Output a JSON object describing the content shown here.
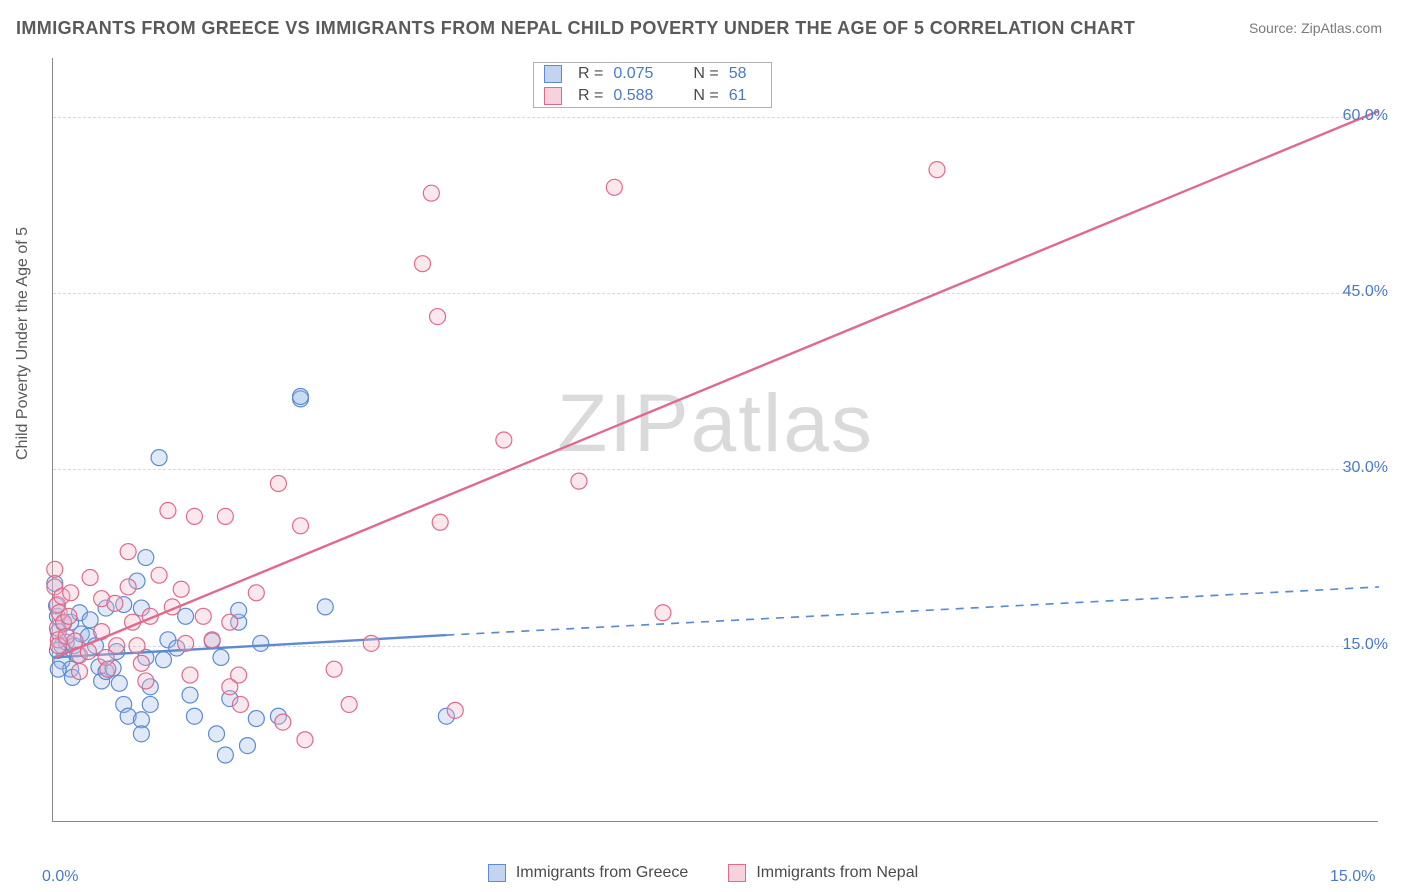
{
  "title": "IMMIGRANTS FROM GREECE VS IMMIGRANTS FROM NEPAL CHILD POVERTY UNDER THE AGE OF 5 CORRELATION CHART",
  "source": "Source: ZipAtlas.com",
  "watermark": "ZIPatlas",
  "y_axis_label": "Child Poverty Under the Age of 5",
  "chart": {
    "type": "scatter-with-regression",
    "background_color": "#ffffff",
    "grid_color": "#d8d8d8",
    "axis_color": "#888888",
    "tick_label_color": "#4a7ac7",
    "text_color": "#5a5a5a",
    "xlim": [
      0,
      15
    ],
    "ylim": [
      0,
      65
    ],
    "x_ticks": [
      {
        "value": 0.0,
        "label": "0.0%"
      },
      {
        "value": 15.0,
        "label": "15.0%"
      }
    ],
    "y_ticks": [
      {
        "value": 15.0,
        "label": "15.0%"
      },
      {
        "value": 30.0,
        "label": "30.0%"
      },
      {
        "value": 45.0,
        "label": "45.0%"
      },
      {
        "value": 60.0,
        "label": "60.0%"
      }
    ],
    "marker_radius": 8,
    "marker_fill_opacity": 0.32,
    "marker_stroke_width": 1.2,
    "line_width": 2.4,
    "series": [
      {
        "name": "Immigrants from Greece",
        "color_fill": "#9dbce8",
        "color_stroke": "#5e8bd0",
        "R": 0.075,
        "N": 58,
        "regression": {
          "x1": 0.0,
          "y1": 14.0,
          "x2": 4.45,
          "y2": 15.9,
          "dashed_extend_to_x": 15.0,
          "dashed_extend_to_y": 20.0
        },
        "points": [
          [
            0.02,
            20.3
          ],
          [
            0.05,
            17.5
          ],
          [
            0.06,
            16.2
          ],
          [
            0.04,
            18.4
          ],
          [
            0.1,
            15.0
          ],
          [
            0.1,
            13.7
          ],
          [
            0.15,
            15.3
          ],
          [
            0.12,
            16.9
          ],
          [
            0.2,
            17.0
          ],
          [
            0.24,
            15.0
          ],
          [
            0.28,
            14.2
          ],
          [
            0.2,
            13.0
          ],
          [
            0.05,
            14.6
          ],
          [
            0.06,
            13.0
          ],
          [
            0.22,
            12.3
          ],
          [
            0.3,
            17.8
          ],
          [
            0.32,
            16.0
          ],
          [
            0.4,
            15.8
          ],
          [
            0.42,
            17.2
          ],
          [
            0.48,
            15.0
          ],
          [
            0.6,
            18.2
          ],
          [
            0.52,
            13.2
          ],
          [
            0.55,
            12.0
          ],
          [
            0.6,
            12.8
          ],
          [
            0.68,
            13.1
          ],
          [
            0.72,
            14.5
          ],
          [
            0.8,
            18.5
          ],
          [
            0.75,
            11.8
          ],
          [
            0.8,
            10.0
          ],
          [
            0.85,
            9.0
          ],
          [
            0.95,
            20.5
          ],
          [
            1.0,
            18.2
          ],
          [
            1.05,
            14.0
          ],
          [
            1.1,
            11.5
          ],
          [
            1.1,
            10.0
          ],
          [
            1.0,
            8.7
          ],
          [
            1.0,
            7.5
          ],
          [
            1.25,
            13.8
          ],
          [
            1.3,
            15.5
          ],
          [
            1.4,
            14.8
          ],
          [
            1.5,
            17.5
          ],
          [
            1.55,
            10.8
          ],
          [
            1.6,
            9.0
          ],
          [
            1.85,
            7.5
          ],
          [
            1.8,
            15.4
          ],
          [
            1.9,
            14.0
          ],
          [
            1.95,
            5.7
          ],
          [
            2.0,
            10.5
          ],
          [
            2.1,
            17.0
          ],
          [
            2.1,
            18.0
          ],
          [
            2.2,
            6.5
          ],
          [
            2.3,
            8.8
          ],
          [
            2.35,
            15.2
          ],
          [
            2.55,
            9.0
          ],
          [
            2.8,
            36.0
          ],
          [
            2.8,
            36.2
          ],
          [
            3.08,
            18.3
          ],
          [
            4.45,
            9.0
          ],
          [
            1.2,
            31.0
          ],
          [
            1.05,
            22.5
          ]
        ]
      },
      {
        "name": "Immigrants from Nepal",
        "color_fill": "#f3b9c8",
        "color_stroke": "#e06a8c",
        "R": 0.588,
        "N": 61,
        "regression": {
          "x1": 0.03,
          "y1": 14.0,
          "x2": 15.0,
          "y2": 60.5,
          "dashed_extend_to_x": null,
          "dashed_extend_to_y": null
        },
        "points": [
          [
            0.02,
            21.5
          ],
          [
            0.02,
            20.0
          ],
          [
            0.05,
            18.5
          ],
          [
            0.05,
            16.5
          ],
          [
            0.06,
            15.5
          ],
          [
            0.06,
            15.0
          ],
          [
            0.07,
            17.8
          ],
          [
            0.1,
            19.2
          ],
          [
            0.12,
            17.0
          ],
          [
            0.15,
            15.8
          ],
          [
            0.18,
            17.5
          ],
          [
            0.2,
            19.5
          ],
          [
            0.25,
            15.4
          ],
          [
            0.3,
            14.2
          ],
          [
            0.3,
            12.8
          ],
          [
            0.4,
            14.5
          ],
          [
            0.42,
            20.8
          ],
          [
            0.55,
            19.0
          ],
          [
            0.55,
            16.2
          ],
          [
            0.6,
            14.0
          ],
          [
            0.62,
            13.0
          ],
          [
            0.7,
            18.6
          ],
          [
            0.72,
            15.0
          ],
          [
            0.85,
            23.0
          ],
          [
            0.85,
            20.0
          ],
          [
            0.9,
            17.0
          ],
          [
            0.95,
            15.0
          ],
          [
            1.0,
            13.5
          ],
          [
            1.05,
            12.0
          ],
          [
            1.1,
            17.5
          ],
          [
            1.2,
            21.0
          ],
          [
            1.3,
            26.5
          ],
          [
            1.35,
            18.3
          ],
          [
            1.45,
            19.8
          ],
          [
            1.5,
            15.2
          ],
          [
            1.55,
            12.5
          ],
          [
            1.6,
            26.0
          ],
          [
            1.7,
            17.5
          ],
          [
            1.8,
            15.5
          ],
          [
            1.95,
            26.0
          ],
          [
            2.0,
            17.0
          ],
          [
            2.0,
            11.5
          ],
          [
            2.1,
            12.5
          ],
          [
            2.12,
            10.0
          ],
          [
            2.3,
            19.5
          ],
          [
            2.55,
            28.8
          ],
          [
            2.6,
            8.5
          ],
          [
            2.8,
            25.2
          ],
          [
            2.85,
            7.0
          ],
          [
            3.18,
            13.0
          ],
          [
            3.35,
            10.0
          ],
          [
            3.6,
            15.2
          ],
          [
            4.18,
            47.5
          ],
          [
            4.28,
            53.5
          ],
          [
            4.35,
            43.0
          ],
          [
            4.38,
            25.5
          ],
          [
            4.55,
            9.5
          ],
          [
            5.1,
            32.5
          ],
          [
            5.95,
            29.0
          ],
          [
            6.35,
            54.0
          ],
          [
            6.9,
            17.8
          ],
          [
            10.0,
            55.5
          ]
        ]
      }
    ]
  },
  "stats_box": {
    "rows": [
      {
        "swatch": "blue",
        "R": "0.075",
        "N": "58"
      },
      {
        "swatch": "pink",
        "R": "0.588",
        "N": "61"
      }
    ]
  },
  "bottom_legend": [
    {
      "swatch": "blue",
      "label": "Immigrants from Greece"
    },
    {
      "swatch": "pink",
      "label": "Immigrants from Nepal"
    }
  ]
}
